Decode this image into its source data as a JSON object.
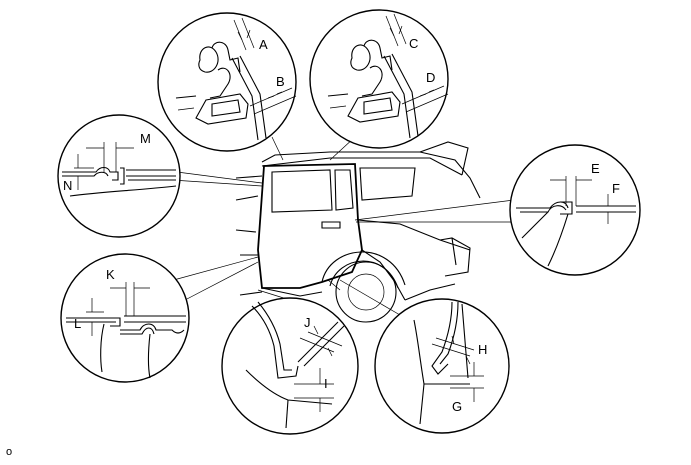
{
  "labels": {
    "A": "A",
    "B": "B",
    "C": "C",
    "D": "D",
    "E": "E",
    "F": "F",
    "G": "G",
    "H": "H",
    "I": "I",
    "J": "J",
    "K": "K",
    "L": "L",
    "M": "M",
    "N": "N"
  },
  "footer_code": "o"
}
